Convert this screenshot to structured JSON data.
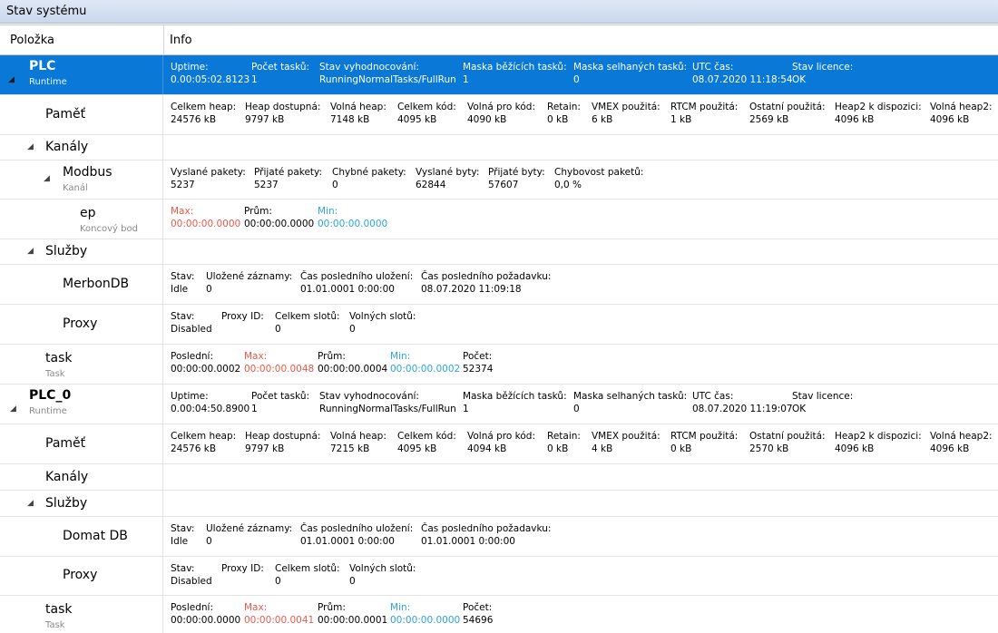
{
  "title": "Stav systému",
  "columns": {
    "item": "Položka",
    "info": "Info"
  },
  "plc": {
    "name": "PLC",
    "sub": "Runtime",
    "fields": [
      [
        "Uptime:",
        "0.00:05:02.8123"
      ],
      [
        "Počet tasků:",
        "1"
      ],
      [
        "Stav vyhodnocování:",
        "RunningNormalTasks/FullRun"
      ],
      [
        "Maska běžících tasků:",
        "1"
      ],
      [
        "Maska selhaných tasků:",
        "0"
      ],
      [
        "UTC čas:",
        "08.07.2020 11:18:54"
      ],
      [
        "Stav licence:",
        "OK"
      ]
    ],
    "memory": {
      "name": "Paměť",
      "fields": [
        [
          "Celkem heap:",
          "24576 kB"
        ],
        [
          "Heap dostupná:",
          "9797 kB"
        ],
        [
          "Volná heap:",
          "7148 kB"
        ],
        [
          "Celkem kód:",
          "4095 kB"
        ],
        [
          "Volná pro kód:",
          "4090 kB"
        ],
        [
          "Retain:",
          "0 kB"
        ],
        [
          "VMEX použitá:",
          "6 kB"
        ],
        [
          "RTCM použitá:",
          "1 kB"
        ],
        [
          "Ostatní použitá:",
          "2569 kB"
        ],
        [
          "Heap2 k dispozici:",
          "4096 kB"
        ],
        [
          "Volná heap2:",
          "4096 kB"
        ]
      ]
    },
    "channels": {
      "name": "Kanály",
      "modbus": {
        "name": "Modbus",
        "sub": "Kanál",
        "fields": [
          [
            "Vyslané pakety:",
            "5237"
          ],
          [
            "Přijaté pakety:",
            "5237"
          ],
          [
            "Chybné pakety:",
            "0"
          ],
          [
            "Vyslané byty:",
            "62844"
          ],
          [
            "Přijaté byty:",
            "57607"
          ],
          [
            "Chybovost paketů:",
            "0,0 %"
          ]
        ]
      },
      "ep": {
        "name": "ep",
        "sub": "Koncový bod",
        "fields": [
          [
            "Max:",
            "00:00:00.0000"
          ],
          [
            "Prům:",
            "00:00:00.0000"
          ],
          [
            "Min:",
            "00:00:00.0000"
          ]
        ]
      }
    },
    "services": {
      "name": "Služby",
      "merbon": {
        "name": "MerbonDB",
        "fields": [
          [
            "Stav:",
            "Idle"
          ],
          [
            "Uložené záznamy:",
            "0"
          ],
          [
            "Čas posledního uložení:",
            "01.01.0001 0:00:00"
          ],
          [
            "Čas posledního požadavku:",
            "08.07.2020 11:09:18"
          ]
        ]
      },
      "proxy": {
        "name": "Proxy",
        "fields": [
          [
            "Stav:",
            "Disabled"
          ],
          [
            "Proxy ID:",
            ""
          ],
          [
            "Celkem slotů:",
            "0"
          ],
          [
            "Volných slotů:",
            "0"
          ]
        ]
      }
    },
    "task": {
      "name": "task",
      "sub": "Task",
      "fields": [
        [
          "Poslední:",
          "00:00:00.0002"
        ],
        [
          "Max:",
          "00:00:00.0048"
        ],
        [
          "Prům:",
          "00:00:00.0004"
        ],
        [
          "Min:",
          "00:00:00.0002"
        ],
        [
          "Počet:",
          "52374"
        ]
      ]
    }
  },
  "plc0": {
    "name": "PLC_0",
    "sub": "Runtime",
    "fields": [
      [
        "Uptime:",
        "0.00:04:50.8900"
      ],
      [
        "Počet tasků:",
        "1"
      ],
      [
        "Stav vyhodnocování:",
        "RunningNormalTasks/FullRun"
      ],
      [
        "Maska běžících tasků:",
        "1"
      ],
      [
        "Maska selhaných tasků:",
        "0"
      ],
      [
        "UTC čas:",
        "08.07.2020 11:19:07"
      ],
      [
        "Stav licence:",
        "OK"
      ]
    ],
    "memory": {
      "name": "Paměť",
      "fields": [
        [
          "Celkem heap:",
          "24576 kB"
        ],
        [
          "Heap dostupná:",
          "9797 kB"
        ],
        [
          "Volná heap:",
          "7215 kB"
        ],
        [
          "Celkem kód:",
          "4095 kB"
        ],
        [
          "Volná pro kód:",
          "4094 kB"
        ],
        [
          "Retain:",
          "0 kB"
        ],
        [
          "VMEX použitá:",
          "4 kB"
        ],
        [
          "RTCM použitá:",
          "0 kB"
        ],
        [
          "Ostatní použitá:",
          "2570 kB"
        ],
        [
          "Heap2 k dispozici:",
          "4096 kB"
        ],
        [
          "Volná heap2:",
          "4096 kB"
        ]
      ]
    },
    "channels": {
      "name": "Kanály"
    },
    "services": {
      "name": "Služby",
      "domat": {
        "name": "Domat DB",
        "fields": [
          [
            "Stav:",
            "Idle"
          ],
          [
            "Uložené záznamy:",
            "0"
          ],
          [
            "Čas posledního uložení:",
            "01.01.0001 0:00:00"
          ],
          [
            "Čas posledního požadavku:",
            "01.01.0001 0:00:00"
          ]
        ]
      },
      "proxy": {
        "name": "Proxy",
        "fields": [
          [
            "Stav:",
            "Disabled"
          ],
          [
            "Proxy ID:",
            ""
          ],
          [
            "Celkem slotů:",
            "0"
          ],
          [
            "Volných slotů:",
            "0"
          ]
        ]
      }
    },
    "task": {
      "name": "task",
      "sub": "Task",
      "fields": [
        [
          "Poslední:",
          "00:00:00.0000"
        ],
        [
          "Max:",
          "00:00:00.0041"
        ],
        [
          "Prům:",
          "00:00:00.0001"
        ],
        [
          "Min:",
          "00:00:00.0000"
        ],
        [
          "Počet:",
          "54696"
        ]
      ]
    }
  }
}
